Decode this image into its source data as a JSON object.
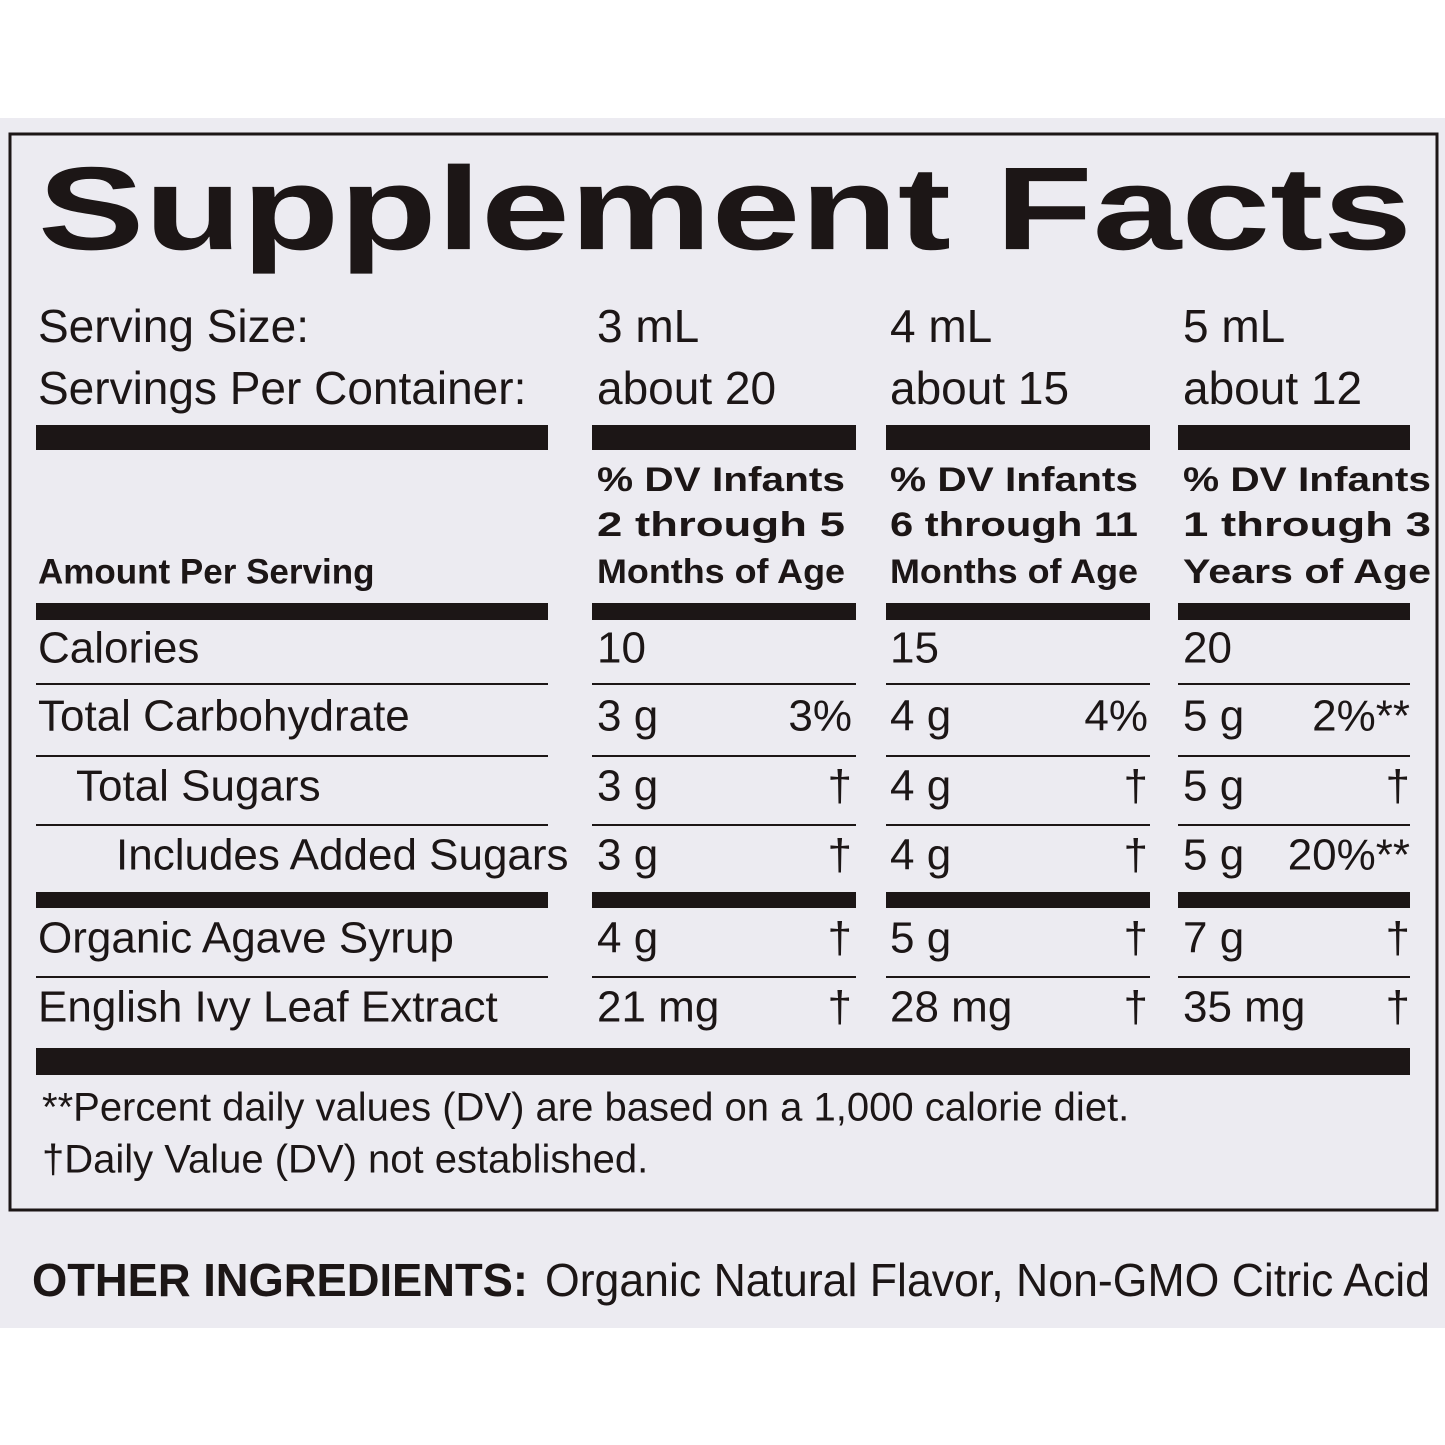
{
  "title": "Supplement Facts",
  "serving": {
    "labels": [
      "Serving Size:",
      "Servings Per Container:"
    ],
    "columns": [
      [
        "3 mL",
        "about 20"
      ],
      [
        "4 mL",
        "about 15"
      ],
      [
        "5 mL",
        "about 12"
      ]
    ]
  },
  "header": {
    "amount_label": "Amount Per Serving",
    "columns": [
      [
        "% DV Infants",
        "2 through 5",
        "Months of Age"
      ],
      [
        "% DV Infants",
        "6 through 11",
        "Months of Age"
      ],
      [
        "% DV Infants",
        "1 through 3",
        "Years of Age"
      ]
    ]
  },
  "rows": [
    {
      "name": "Calories",
      "amounts": [
        "10",
        "15",
        "20"
      ]
    },
    {
      "name": "Total Carbohydrate",
      "amounts": [
        "3 g",
        "4 g",
        "5 g"
      ],
      "dv": [
        "3%",
        "4%",
        "2%**"
      ]
    },
    {
      "name": "Total Sugars",
      "amounts": [
        "3 g",
        "4 g",
        "5 g"
      ],
      "dv": [
        "†",
        "†",
        "†"
      ]
    },
    {
      "name": "Includes Added Sugars",
      "amounts": [
        "3 g",
        "4 g",
        "5 g"
      ],
      "dv": [
        "†",
        "†",
        "20%**"
      ]
    },
    {
      "name": "Organic Agave Syrup",
      "amounts": [
        "4 g",
        "5 g",
        "7 g"
      ],
      "dv": [
        "†",
        "†",
        "†"
      ]
    },
    {
      "name": "English Ivy Leaf Extract",
      "amounts": [
        "21 mg",
        "28 mg",
        "35 mg"
      ],
      "dv": [
        "†",
        "†",
        "†"
      ]
    }
  ],
  "footnotes": [
    "**Percent daily values (DV) are based on a 1,000 calorie diet.",
    "†Daily Value (DV) not established."
  ],
  "other_ingredients": {
    "label": "OTHER INGREDIENTS:",
    "text": "Organic Natural Flavor, Non-GMO Citric Acid"
  }
}
